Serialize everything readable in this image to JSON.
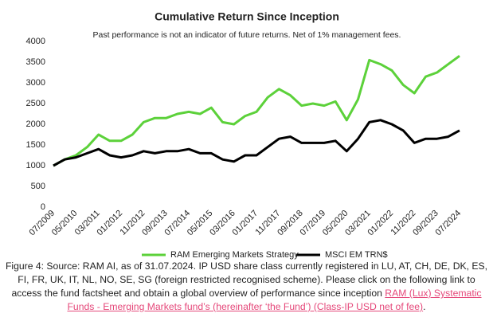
{
  "chart_data": {
    "type": "line",
    "title": "Cumulative Return Since Inception",
    "subtitle": "Past performance is not an indicator of future returns. Net of 1% management fees.",
    "categories": [
      "07/2009",
      null,
      "05/2010",
      null,
      "03/2011",
      null,
      "01/2012",
      null,
      "11/2012",
      null,
      "09/2013",
      null,
      "07/2014",
      null,
      "05/2015",
      null,
      "03/2016",
      null,
      "01/2017",
      null,
      "11/2017",
      null,
      "09/2018",
      null,
      "07/2019",
      null,
      "05/2020",
      null,
      "03/2021",
      null,
      "01/2022",
      null,
      "11/2022",
      null,
      "09/2023",
      null,
      "07/2024"
    ],
    "series": [
      {
        "name": "RAM Emerging Markets Strategy",
        "color": "#5cd13a",
        "values": [
          1000,
          1150,
          1250,
          1450,
          1750,
          1600,
          1600,
          1750,
          2050,
          2150,
          2150,
          2250,
          2300,
          2250,
          2400,
          2050,
          2000,
          2200,
          2300,
          2650,
          2850,
          2700,
          2450,
          2500,
          2450,
          2550,
          2100,
          2600,
          3550,
          3450,
          3300,
          2950,
          2750,
          3150,
          3250,
          3450,
          3650
        ]
      },
      {
        "name": "MSCI EM TRN$",
        "color": "#000000",
        "values": [
          1000,
          1150,
          1200,
          1300,
          1400,
          1250,
          1200,
          1250,
          1350,
          1300,
          1350,
          1350,
          1400,
          1300,
          1300,
          1150,
          1100,
          1250,
          1250,
          1450,
          1650,
          1700,
          1550,
          1550,
          1550,
          1600,
          1350,
          1650,
          2050,
          2100,
          2000,
          1850,
          1550,
          1650,
          1650,
          1700,
          1850
        ]
      }
    ],
    "ylim": [
      0,
      4000
    ],
    "yticks": [
      0,
      500,
      1000,
      1500,
      2000,
      2500,
      3000,
      3500,
      4000
    ],
    "grid": false,
    "legend": "bottom"
  },
  "caption": {
    "text": "Figure 4: Source: RAM AI, as of 31.07.2024. IP USD share class currently registered in LU, AT, CH, DE, DK, ES, FI, FR, UK, IT, NL, NO, SE, SG (foreign restricted recognised scheme). Please click on the following link to access the fund factsheet and obtain a global overview of performance since inception ",
    "link": "RAM (Lux) Systematic Funds - Emerging Markets fund’s (hereinafter ‘the Fund’) (Class-IP USD net of fee)",
    "end": "."
  }
}
